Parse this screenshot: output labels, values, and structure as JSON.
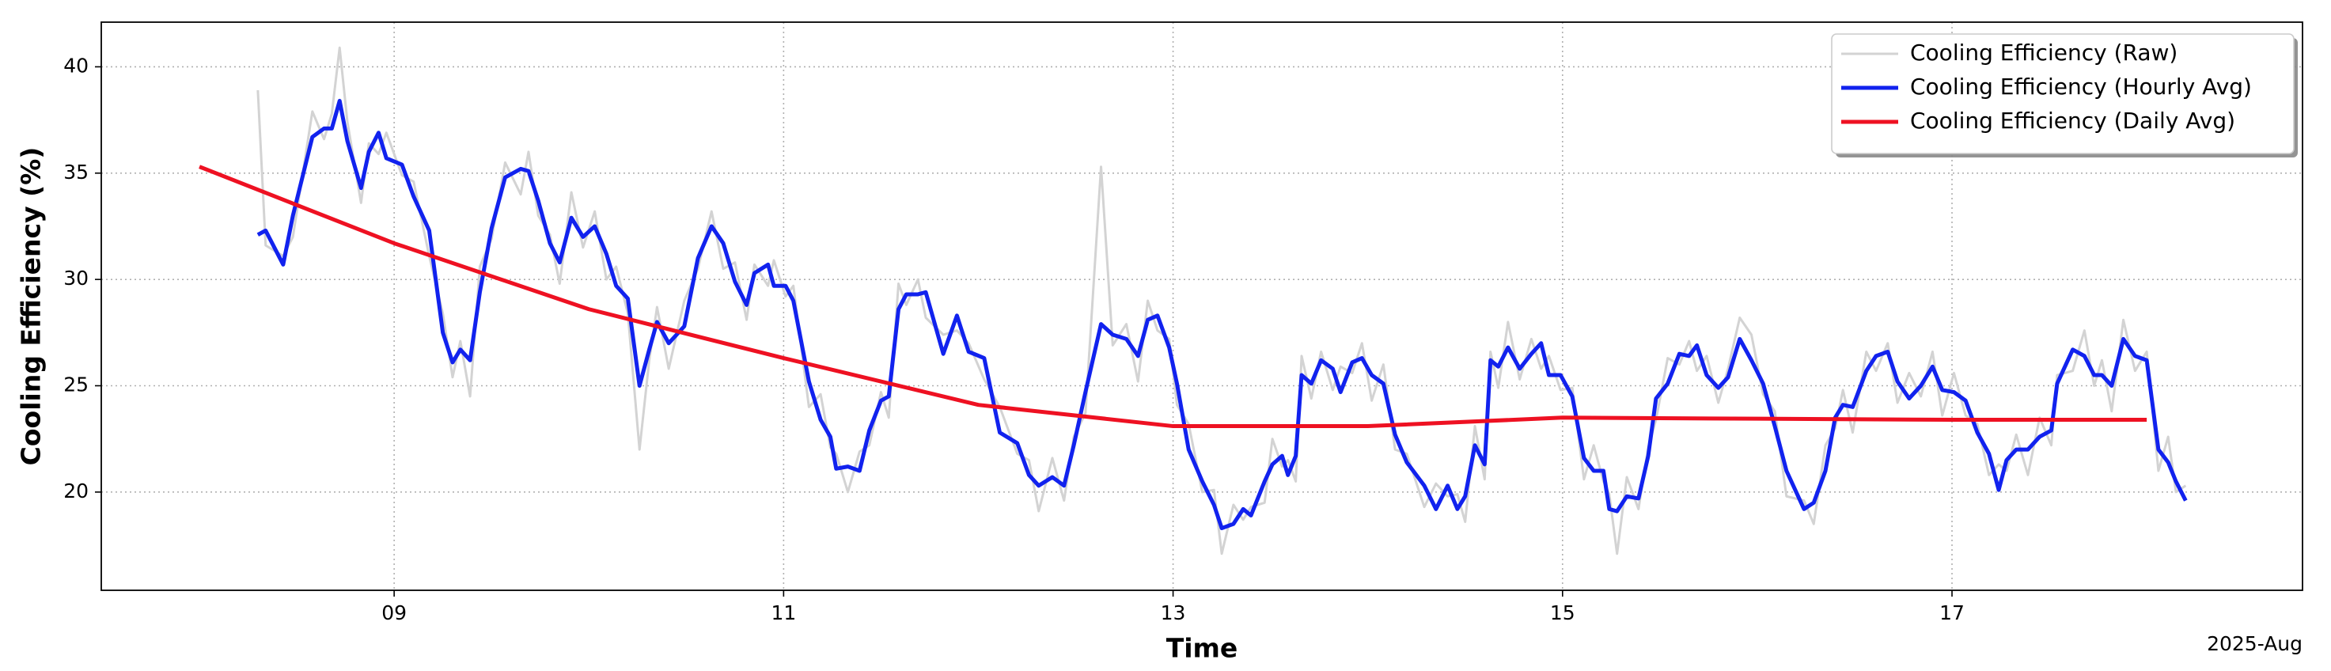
{
  "chart_data": {
    "type": "line",
    "x_label": "Time",
    "x_offset_label": "2025-Aug",
    "y_label": "Cooling Efficiency (%)",
    "xlim": [
      7.496,
      18.8
    ],
    "ylim": [
      15.38,
      42.1
    ],
    "xticks": [
      {
        "value": 9,
        "label": "09"
      },
      {
        "value": 11,
        "label": "11"
      },
      {
        "value": 13,
        "label": "13"
      },
      {
        "value": 15,
        "label": "15"
      },
      {
        "value": 17,
        "label": "17"
      }
    ],
    "yticks": [
      20,
      25,
      30,
      35,
      40
    ],
    "grid": true,
    "legend": "upper right",
    "x": [
      8.3,
      8.34,
      8.43,
      8.48,
      8.58,
      8.64,
      8.68,
      8.72,
      8.76,
      8.83,
      8.87,
      8.92,
      8.96,
      9.04,
      9.1,
      9.18,
      9.25,
      9.3,
      9.34,
      9.39,
      9.44,
      9.5,
      9.57,
      9.65,
      9.69,
      9.74,
      9.8,
      9.85,
      9.91,
      9.97,
      10.03,
      10.09,
      10.14,
      10.2,
      10.26,
      10.31,
      10.35,
      10.41,
      10.49,
      10.56,
      10.63,
      10.69,
      10.75,
      10.81,
      10.85,
      10.92,
      10.95,
      11.01,
      11.05,
      11.13,
      11.19,
      11.24,
      11.27,
      11.33,
      11.39,
      11.44,
      11.5,
      11.54,
      11.59,
      11.63,
      11.69,
      11.73,
      11.82,
      11.89,
      11.95,
      12.03,
      12.11,
      12.2,
      12.26,
      12.31,
      12.38,
      12.44,
      12.49,
      12.55,
      12.63,
      12.69,
      12.76,
      12.82,
      12.87,
      12.92,
      12.98,
      13.02,
      13.08,
      13.15,
      13.21,
      13.25,
      13.31,
      13.36,
      13.4,
      13.47,
      13.51,
      13.56,
      13.59,
      13.63,
      13.66,
      13.71,
      13.76,
      13.82,
      13.86,
      13.92,
      13.97,
      14.02,
      14.08,
      14.14,
      14.2,
      14.29,
      14.35,
      14.41,
      14.46,
      14.5,
      14.55,
      14.6,
      14.63,
      14.67,
      14.72,
      14.78,
      14.84,
      14.89,
      14.93,
      14.99,
      15.05,
      15.11,
      15.16,
      15.21,
      15.24,
      15.28,
      15.33,
      15.39,
      15.44,
      15.48,
      15.54,
      15.6,
      15.65,
      15.69,
      15.74,
      15.8,
      15.85,
      15.91,
      15.97,
      16.03,
      16.09,
      16.15,
      16.24,
      16.29,
      16.35,
      16.4,
      16.44,
      16.49,
      16.56,
      16.61,
      16.67,
      16.72,
      16.78,
      16.84,
      16.9,
      16.95,
      17.01,
      17.07,
      17.13,
      17.19,
      17.24,
      17.28,
      17.33,
      17.39,
      17.45,
      17.51,
      17.54,
      17.62,
      17.68,
      17.73,
      17.77,
      17.82,
      17.88,
      17.94,
      18.0,
      18.06,
      18.11,
      18.15,
      18.2
    ],
    "series": [
      {
        "name": "Cooling Efficiency (Raw)",
        "color": "#d3d3d3",
        "width": 3,
        "values": [
          38.9,
          31.6,
          31.1,
          32.0,
          37.9,
          36.6,
          37.8,
          40.9,
          37.4,
          33.6,
          36.4,
          35.9,
          36.9,
          34.9,
          34.6,
          31.1,
          28.4,
          25.4,
          27.1,
          24.5,
          30.6,
          31.9,
          35.5,
          34.0,
          36.0,
          33.0,
          32.1,
          29.8,
          34.1,
          31.5,
          33.2,
          30.0,
          30.6,
          28.4,
          22.0,
          26.2,
          28.7,
          25.8,
          29.0,
          30.5,
          33.2,
          30.5,
          30.8,
          28.1,
          30.7,
          29.7,
          30.9,
          29.2,
          29.7,
          24.0,
          24.6,
          22.1,
          21.8,
          20.0,
          21.9,
          22.2,
          24.7,
          23.5,
          29.8,
          28.8,
          30.0,
          28.2,
          27.4,
          27.6,
          27.0,
          25.3,
          24.0,
          21.8,
          21.5,
          19.1,
          21.6,
          19.6,
          22.6,
          23.7,
          35.3,
          26.9,
          27.9,
          25.2,
          29.0,
          27.6,
          27.2,
          24.1,
          23.2,
          20.0,
          20.1,
          17.1,
          19.4,
          18.7,
          19.3,
          19.5,
          22.5,
          21.2,
          21.5,
          20.5,
          26.4,
          24.4,
          26.6,
          24.8,
          25.9,
          25.6,
          27.0,
          24.3,
          26.0,
          22.0,
          21.8,
          19.3,
          20.4,
          19.8,
          19.9,
          18.6,
          23.1,
          20.6,
          26.6,
          24.9,
          28.0,
          25.3,
          27.2,
          25.8,
          26.4,
          24.8,
          24.9,
          20.6,
          22.2,
          20.5,
          19.9,
          17.1,
          20.7,
          19.2,
          22.1,
          23.4,
          26.3,
          26.0,
          27.1,
          25.7,
          26.4,
          24.2,
          25.8,
          28.2,
          27.4,
          24.6,
          23.8,
          19.8,
          19.6,
          18.5,
          22.2,
          23.0,
          24.8,
          22.8,
          26.6,
          25.7,
          27.0,
          24.2,
          25.6,
          24.5,
          26.6,
          23.6,
          25.6,
          23.6,
          23.2,
          20.8,
          21.3,
          21.0,
          22.7,
          20.8,
          23.5,
          22.2,
          25.5,
          25.7,
          27.6,
          25.0,
          26.2,
          23.8,
          28.1,
          25.7,
          26.6,
          21.0,
          22.6,
          20.0,
          20.3
        ]
      },
      {
        "name": "Cooling Efficiency (Hourly Avg)",
        "color": "#1122ee",
        "width": 5,
        "values": [
          32.1,
          32.3,
          30.7,
          33.0,
          36.7,
          37.1,
          37.1,
          38.4,
          36.5,
          34.3,
          36.0,
          36.9,
          35.7,
          35.4,
          33.9,
          32.3,
          27.5,
          26.1,
          26.7,
          26.2,
          29.4,
          32.4,
          34.8,
          35.2,
          35.1,
          33.7,
          31.7,
          30.8,
          32.9,
          32.0,
          32.5,
          31.2,
          29.7,
          29.1,
          25.0,
          26.7,
          28.0,
          27.0,
          27.8,
          31.0,
          32.5,
          31.7,
          29.9,
          28.8,
          30.3,
          30.7,
          29.7,
          29.7,
          29.0,
          25.2,
          23.4,
          22.6,
          21.1,
          21.2,
          21.0,
          22.9,
          24.3,
          24.5,
          28.6,
          29.3,
          29.3,
          29.4,
          26.5,
          28.3,
          26.6,
          26.3,
          22.8,
          22.3,
          20.8,
          20.3,
          20.7,
          20.3,
          22.2,
          24.7,
          27.9,
          27.4,
          27.2,
          26.4,
          28.1,
          28.3,
          26.8,
          25.1,
          22.0,
          20.5,
          19.4,
          18.3,
          18.5,
          19.2,
          18.9,
          20.5,
          21.3,
          21.7,
          20.8,
          21.7,
          25.5,
          25.1,
          26.2,
          25.8,
          24.7,
          26.1,
          26.3,
          25.5,
          25.1,
          22.7,
          21.4,
          20.3,
          19.2,
          20.3,
          19.2,
          19.8,
          22.2,
          21.3,
          26.2,
          25.9,
          26.8,
          25.8,
          26.5,
          27.0,
          25.5,
          25.5,
          24.5,
          21.6,
          21.0,
          21.0,
          19.2,
          19.1,
          19.8,
          19.7,
          21.7,
          24.4,
          25.1,
          26.5,
          26.4,
          26.9,
          25.5,
          24.9,
          25.4,
          27.2,
          26.2,
          25.1,
          23.1,
          21.0,
          19.2,
          19.5,
          21.0,
          23.5,
          24.1,
          24.0,
          25.7,
          26.4,
          26.6,
          25.2,
          24.4,
          25.0,
          25.9,
          24.8,
          24.7,
          24.3,
          22.8,
          21.8,
          20.1,
          21.5,
          22.0,
          22.0,
          22.6,
          22.9,
          25.1,
          26.7,
          26.4,
          25.5,
          25.5,
          25.0,
          27.2,
          26.4,
          26.2,
          22.0,
          21.4,
          20.5,
          19.6
        ]
      },
      {
        "name": "Cooling Efficiency (Daily Avg)",
        "color": "#ee1122",
        "width": 5,
        "x": [
          8,
          9,
          10,
          11,
          12,
          13,
          14,
          15,
          16,
          17,
          18
        ],
        "values": [
          35.3,
          31.7,
          28.6,
          26.3,
          24.1,
          23.1,
          23.1,
          23.5,
          23.45,
          23.4,
          23.4
        ]
      }
    ]
  }
}
